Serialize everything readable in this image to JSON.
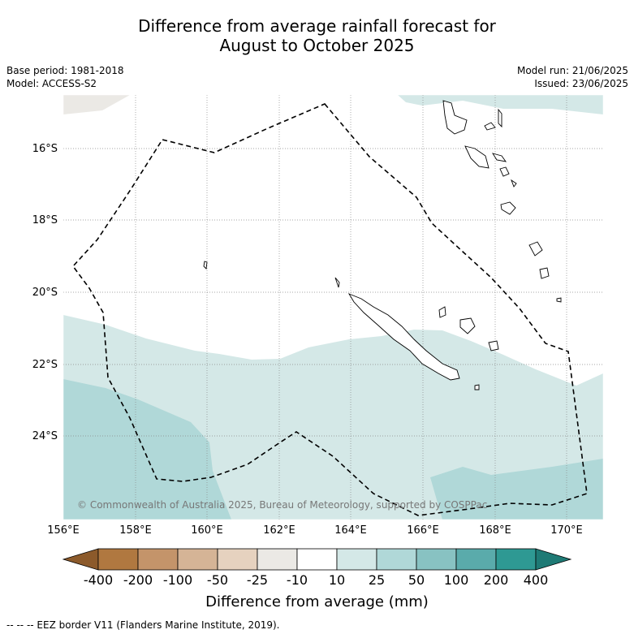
{
  "title_line1": "Difference from average rainfall forecast for",
  "title_line2": "August to October 2025",
  "meta_left": {
    "base_period": "Base period: 1981-2018",
    "model": "Model: ACCESS-S2"
  },
  "meta_right": {
    "model_run": "Model run: 21/06/2025",
    "issued": "Issued: 23/06/2025"
  },
  "map": {
    "lat_labels": [
      "16°S",
      "18°S",
      "20°S",
      "22°S",
      "24°S"
    ],
    "lon_labels": [
      "156°E",
      "158°E",
      "160°E",
      "162°E",
      "164°E",
      "166°E",
      "168°E",
      "170°E"
    ],
    "copyright": "© Commonwealth of Australia 2025, Bureau of Meteorology, supported by COSPPac",
    "boundary": "EEZ border"
  },
  "colorbar": {
    "title": "Difference from average (mm)",
    "labels": [
      "-400",
      "-200",
      "-100",
      "-50",
      "-25",
      "-10",
      "10",
      "25",
      "50",
      "100",
      "200",
      "400"
    ],
    "colors": [
      "#8c5a2b",
      "#b07840",
      "#c4946a",
      "#d5b496",
      "#e6d2bf",
      "#ebe9e5",
      "#ffffff",
      "#d4e8e7",
      "#b0d8d8",
      "#88c2c2",
      "#5aabab",
      "#2e9993",
      "#1e7a75"
    ]
  },
  "footer_note": "--  --  -- EEZ border V11 (Flanders Marine Institute, 2019)."
}
